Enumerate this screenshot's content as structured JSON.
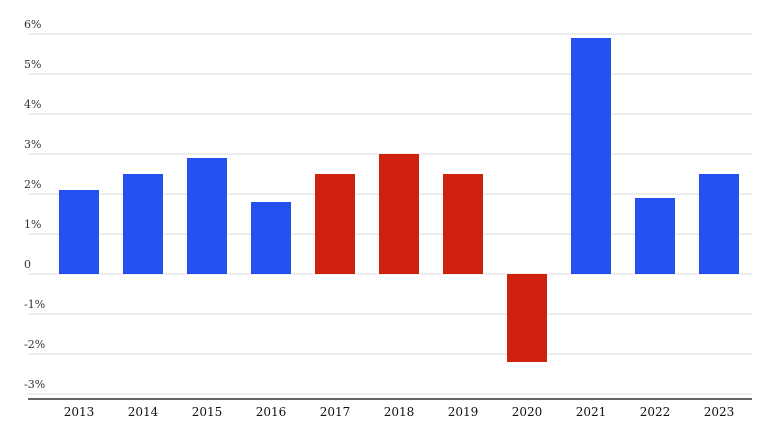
{
  "chart_data": {
    "type": "bar",
    "title": "",
    "xlabel": "",
    "ylabel": "",
    "categories": [
      "2013",
      "2014",
      "2015",
      "2016",
      "2017",
      "2018",
      "2019",
      "2020",
      "2021",
      "2022",
      "2023"
    ],
    "values": [
      2.1,
      2.5,
      2.9,
      1.8,
      2.5,
      3.0,
      2.5,
      -2.2,
      5.9,
      1.9,
      2.5
    ],
    "bar_colors": [
      "#2350ee",
      "#2350ee",
      "#2350ee",
      "#2350ee",
      "#d0200e",
      "#d0200e",
      "#d0200e",
      "#d0200e",
      "#2350ee",
      "#2350ee",
      "#2350ee"
    ],
    "ylim": [
      -3.2,
      6.0
    ],
    "y_ticks": [
      6,
      5,
      4,
      3,
      2,
      1,
      0,
      -1,
      -2,
      -3
    ],
    "y_tick_labels": [
      "6%",
      "5%",
      "4%",
      "3%",
      "2%",
      "1%",
      "0",
      "-1%",
      "-2%",
      "-3%"
    ],
    "grid": true,
    "legend": "none",
    "colors": {
      "blue": "#2350ee",
      "red": "#d0200e",
      "grid": "#dddddd",
      "axis": "#333333"
    }
  }
}
